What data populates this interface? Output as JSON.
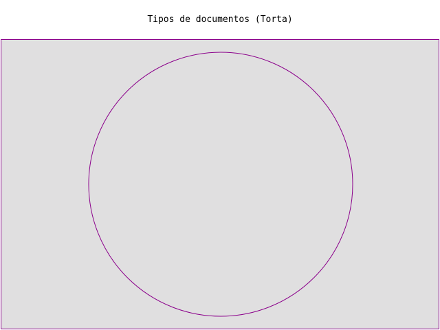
{
  "chart_data": {
    "type": "pie",
    "title": "Tipos de documentos (Torta)",
    "slices": [],
    "colors": {
      "background": "#e0dfe0",
      "outline": "#8b008b"
    }
  }
}
